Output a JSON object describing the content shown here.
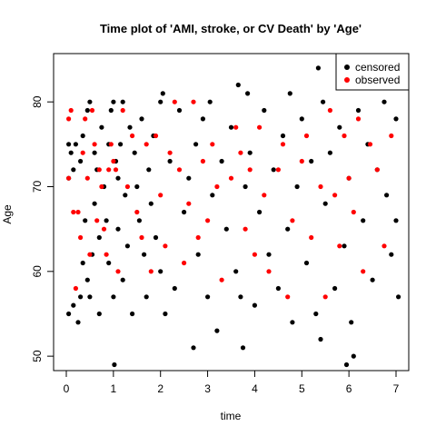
{
  "chart_data": {
    "type": "scatter",
    "title": "Time plot of 'AMI, stroke, or CV Death' by 'Age'",
    "xlabel": "time",
    "ylabel": "Age",
    "xlim": [
      -0.27,
      7.27
    ],
    "ylim": [
      48.3,
      85.7
    ],
    "x_ticks": [
      0,
      1,
      2,
      3,
      4,
      5,
      6,
      7
    ],
    "y_ticks": [
      50,
      60,
      70,
      80
    ],
    "grid": false,
    "legend": {
      "placement": "top-right",
      "entries": [
        {
          "name": "censored",
          "color": "#000000"
        },
        {
          "name": "observed",
          "color": "#ff0000"
        }
      ]
    },
    "series": [
      {
        "name": "censored",
        "color": "#000000",
        "points": [
          [
            0.05,
            75
          ],
          [
            0.05,
            71
          ],
          [
            0.05,
            55
          ],
          [
            0.1,
            74
          ],
          [
            0.15,
            72
          ],
          [
            0.15,
            56
          ],
          [
            0.2,
            75
          ],
          [
            0.25,
            54
          ],
          [
            0.3,
            73
          ],
          [
            0.3,
            57
          ],
          [
            0.35,
            76
          ],
          [
            0.35,
            61
          ],
          [
            0.4,
            66
          ],
          [
            0.45,
            79
          ],
          [
            0.45,
            59
          ],
          [
            0.5,
            80
          ],
          [
            0.5,
            57
          ],
          [
            0.55,
            62
          ],
          [
            0.6,
            74
          ],
          [
            0.6,
            68
          ],
          [
            0.65,
            72
          ],
          [
            0.7,
            64
          ],
          [
            0.7,
            55
          ],
          [
            0.75,
            77
          ],
          [
            0.8,
            70
          ],
          [
            0.85,
            66
          ],
          [
            0.9,
            75
          ],
          [
            0.9,
            61
          ],
          [
            0.95,
            79
          ],
          [
            1.0,
            80
          ],
          [
            1.0,
            57
          ],
          [
            1.02,
            49
          ],
          [
            1.05,
            73
          ],
          [
            1.1,
            71
          ],
          [
            1.1,
            65
          ],
          [
            1.15,
            75
          ],
          [
            1.2,
            80
          ],
          [
            1.2,
            59
          ],
          [
            1.25,
            69
          ],
          [
            1.3,
            63
          ],
          [
            1.35,
            77
          ],
          [
            1.4,
            55
          ],
          [
            1.45,
            74
          ],
          [
            1.5,
            70
          ],
          [
            1.55,
            66
          ],
          [
            1.6,
            78
          ],
          [
            1.65,
            62
          ],
          [
            1.7,
            57
          ],
          [
            1.75,
            72
          ],
          [
            1.8,
            68
          ],
          [
            1.85,
            76
          ],
          [
            1.9,
            64
          ],
          [
            2.0,
            80
          ],
          [
            2.0,
            60
          ],
          [
            2.05,
            81
          ],
          [
            2.1,
            55
          ],
          [
            2.2,
            73
          ],
          [
            2.3,
            58
          ],
          [
            2.4,
            79
          ],
          [
            2.5,
            67
          ],
          [
            2.6,
            71
          ],
          [
            2.7,
            51
          ],
          [
            2.75,
            75
          ],
          [
            2.8,
            62
          ],
          [
            2.9,
            78
          ],
          [
            3.0,
            57
          ],
          [
            3.05,
            80
          ],
          [
            3.1,
            69
          ],
          [
            3.2,
            53
          ],
          [
            3.3,
            73
          ],
          [
            3.4,
            65
          ],
          [
            3.5,
            77
          ],
          [
            3.6,
            60
          ],
          [
            3.65,
            82
          ],
          [
            3.7,
            57
          ],
          [
            3.75,
            51
          ],
          [
            3.8,
            70
          ],
          [
            3.85,
            81
          ],
          [
            3.9,
            74
          ],
          [
            4.0,
            56
          ],
          [
            4.1,
            67
          ],
          [
            4.2,
            79
          ],
          [
            4.3,
            62
          ],
          [
            4.4,
            72
          ],
          [
            4.5,
            58
          ],
          [
            4.6,
            76
          ],
          [
            4.7,
            65
          ],
          [
            4.75,
            81
          ],
          [
            4.8,
            54
          ],
          [
            4.9,
            70
          ],
          [
            5.0,
            78
          ],
          [
            5.1,
            61
          ],
          [
            5.2,
            73
          ],
          [
            5.3,
            55
          ],
          [
            5.35,
            84
          ],
          [
            5.4,
            52
          ],
          [
            5.45,
            80
          ],
          [
            5.5,
            68
          ],
          [
            5.6,
            74
          ],
          [
            5.7,
            58
          ],
          [
            5.8,
            77
          ],
          [
            5.9,
            63
          ],
          [
            5.95,
            49
          ],
          [
            6.0,
            71
          ],
          [
            6.05,
            54
          ],
          [
            6.1,
            50
          ],
          [
            6.2,
            79
          ],
          [
            6.3,
            66
          ],
          [
            6.4,
            75
          ],
          [
            6.5,
            59
          ],
          [
            6.6,
            72
          ],
          [
            6.7,
            83
          ],
          [
            6.75,
            80
          ],
          [
            6.8,
            69
          ],
          [
            6.9,
            62
          ],
          [
            7.0,
            78
          ],
          [
            7.0,
            66
          ],
          [
            7.05,
            57
          ]
        ]
      },
      {
        "name": "observed",
        "color": "#ff0000",
        "points": [
          [
            0.05,
            78
          ],
          [
            0.05,
            71
          ],
          [
            0.1,
            79
          ],
          [
            0.15,
            67
          ],
          [
            0.2,
            58
          ],
          [
            0.25,
            67
          ],
          [
            0.3,
            64
          ],
          [
            0.35,
            74
          ],
          [
            0.4,
            78
          ],
          [
            0.45,
            71
          ],
          [
            0.5,
            62
          ],
          [
            0.55,
            79
          ],
          [
            0.6,
            75
          ],
          [
            0.65,
            66
          ],
          [
            0.7,
            72
          ],
          [
            0.75,
            70
          ],
          [
            0.8,
            65
          ],
          [
            0.85,
            62
          ],
          [
            0.9,
            72
          ],
          [
            0.95,
            75
          ],
          [
            1.0,
            73
          ],
          [
            1.05,
            72
          ],
          [
            1.1,
            60
          ],
          [
            1.2,
            79
          ],
          [
            1.3,
            70
          ],
          [
            1.4,
            76
          ],
          [
            1.5,
            67
          ],
          [
            1.6,
            64
          ],
          [
            1.7,
            75
          ],
          [
            1.8,
            60
          ],
          [
            1.9,
            76
          ],
          [
            2.0,
            69
          ],
          [
            2.1,
            63
          ],
          [
            2.2,
            74
          ],
          [
            2.3,
            80
          ],
          [
            2.4,
            72
          ],
          [
            2.5,
            61
          ],
          [
            2.6,
            68
          ],
          [
            2.7,
            80
          ],
          [
            2.8,
            64
          ],
          [
            2.9,
            73
          ],
          [
            3.0,
            66
          ],
          [
            3.1,
            75
          ],
          [
            3.2,
            70
          ],
          [
            3.3,
            59
          ],
          [
            3.5,
            71
          ],
          [
            3.6,
            77
          ],
          [
            3.7,
            74
          ],
          [
            3.8,
            65
          ],
          [
            3.9,
            72
          ],
          [
            4.0,
            62
          ],
          [
            4.1,
            77
          ],
          [
            4.2,
            69
          ],
          [
            4.3,
            60
          ],
          [
            4.5,
            72
          ],
          [
            4.6,
            75
          ],
          [
            4.7,
            57
          ],
          [
            4.8,
            66
          ],
          [
            5.0,
            73
          ],
          [
            5.1,
            76
          ],
          [
            5.2,
            64
          ],
          [
            5.4,
            70
          ],
          [
            5.5,
            57
          ],
          [
            5.6,
            79
          ],
          [
            5.7,
            69
          ],
          [
            5.8,
            63
          ],
          [
            5.9,
            76
          ],
          [
            6.0,
            71
          ],
          [
            6.05,
            83
          ],
          [
            6.1,
            67
          ],
          [
            6.2,
            78
          ],
          [
            6.3,
            60
          ],
          [
            6.45,
            75
          ],
          [
            6.6,
            72
          ],
          [
            6.75,
            63
          ],
          [
            6.9,
            76
          ]
        ]
      }
    ]
  }
}
